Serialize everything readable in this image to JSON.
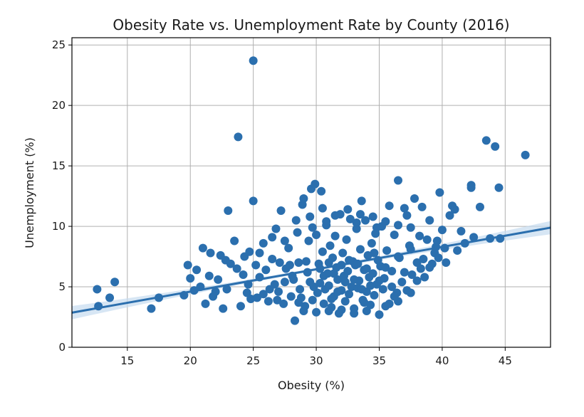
{
  "chart_data": {
    "type": "scatter",
    "title": "Obesity Rate vs. Unemployment Rate by County (2016)",
    "xlabel": "Obesity (%)",
    "ylabel": "Unemployment (%)",
    "xlim": [
      10.6,
      48.6
    ],
    "ylim": [
      0,
      25.6
    ],
    "x_ticks": [
      15,
      20,
      25,
      30,
      35,
      40,
      45
    ],
    "y_ticks": [
      0,
      5,
      10,
      15,
      20,
      25
    ],
    "grid": true,
    "legend": "none",
    "colors": {
      "points": "#2b6fae",
      "fit_line": "#2b6fae",
      "ci_band": "#c6dbef"
    },
    "regression": {
      "slope": 0.185,
      "intercept": 0.9,
      "ci_halfwidth_edge": 0.55
    },
    "points": [
      [
        12.6,
        4.8
      ],
      [
        12.7,
        3.4
      ],
      [
        13.6,
        4.1
      ],
      [
        14.0,
        5.4
      ],
      [
        16.9,
        3.2
      ],
      [
        17.5,
        4.1
      ],
      [
        19.5,
        4.3
      ],
      [
        19.8,
        6.8
      ],
      [
        20.3,
        4.7
      ],
      [
        20.5,
        6.4
      ],
      [
        20.8,
        5.0
      ],
      [
        21.0,
        8.2
      ],
      [
        21.2,
        3.6
      ],
      [
        21.5,
        5.9
      ],
      [
        21.6,
        7.8
      ],
      [
        22.0,
        4.6
      ],
      [
        22.4,
        7.6
      ],
      [
        22.6,
        3.2
      ],
      [
        22.8,
        7.2
      ],
      [
        23.0,
        11.3
      ],
      [
        23.2,
        6.9
      ],
      [
        23.5,
        8.8
      ],
      [
        23.8,
        17.4
      ],
      [
        24.0,
        3.4
      ],
      [
        24.2,
        6.0
      ],
      [
        24.3,
        7.5
      ],
      [
        24.6,
        5.2
      ],
      [
        24.8,
        4.0
      ],
      [
        25.0,
        23.7
      ],
      [
        25.0,
        12.1
      ],
      [
        25.2,
        6.8
      ],
      [
        25.5,
        7.8
      ],
      [
        25.8,
        4.4
      ],
      [
        26.2,
        3.8
      ],
      [
        26.5,
        7.3
      ],
      [
        26.8,
        9.8
      ],
      [
        27.0,
        4.6
      ],
      [
        27.2,
        11.3
      ],
      [
        27.4,
        3.6
      ],
      [
        27.6,
        6.5
      ],
      [
        27.8,
        8.2
      ],
      [
        28.0,
        4.2
      ],
      [
        28.1,
        5.9
      ],
      [
        28.3,
        2.2
      ],
      [
        28.4,
        10.5
      ],
      [
        28.6,
        7.0
      ],
      [
        28.7,
        4.8
      ],
      [
        28.9,
        11.8
      ],
      [
        29.0,
        12.3
      ],
      [
        29.1,
        3.4
      ],
      [
        29.3,
        6.2
      ],
      [
        29.4,
        8.8
      ],
      [
        29.5,
        5.4
      ],
      [
        29.6,
        13.1
      ],
      [
        29.7,
        3.9
      ],
      [
        29.9,
        13.5
      ],
      [
        30.0,
        9.3
      ],
      [
        30.1,
        4.5
      ],
      [
        30.2,
        6.9
      ],
      [
        30.3,
        5.3
      ],
      [
        30.4,
        12.9
      ],
      [
        30.5,
        7.9
      ],
      [
        30.6,
        3.6
      ],
      [
        30.7,
        4.8
      ],
      [
        30.8,
        10.1
      ],
      [
        30.9,
        6.1
      ],
      [
        31.0,
        5.1
      ],
      [
        31.1,
        8.4
      ],
      [
        31.2,
        3.3
      ],
      [
        31.3,
        7.4
      ],
      [
        31.4,
        4.2
      ],
      [
        31.5,
        9.2
      ],
      [
        31.6,
        6.6
      ],
      [
        31.7,
        5.6
      ],
      [
        31.8,
        2.8
      ],
      [
        31.9,
        11.0
      ],
      [
        32.0,
        4.7
      ],
      [
        32.1,
        7.8
      ],
      [
        32.2,
        5.9
      ],
      [
        32.3,
        3.8
      ],
      [
        32.4,
        8.9
      ],
      [
        32.5,
        6.3
      ],
      [
        32.6,
        4.4
      ],
      [
        32.7,
        10.6
      ],
      [
        32.8,
        5.0
      ],
      [
        32.9,
        7.1
      ],
      [
        33.0,
        3.2
      ],
      [
        33.1,
        6.8
      ],
      [
        33.2,
        9.8
      ],
      [
        33.3,
        4.9
      ],
      [
        33.4,
        5.5
      ],
      [
        33.5,
        8.1
      ],
      [
        33.6,
        12.1
      ],
      [
        33.7,
        3.9
      ],
      [
        33.8,
        6.4
      ],
      [
        33.9,
        10.5
      ],
      [
        34.0,
        4.6
      ],
      [
        34.1,
        7.6
      ],
      [
        34.2,
        5.8
      ],
      [
        34.3,
        3.5
      ],
      [
        34.4,
        8.6
      ],
      [
        34.5,
        6.1
      ],
      [
        34.6,
        4.3
      ],
      [
        34.7,
        9.4
      ],
      [
        34.8,
        5.2
      ],
      [
        34.9,
        7.2
      ],
      [
        35.0,
        2.7
      ],
      [
        35.1,
        6.7
      ],
      [
        35.2,
        10.0
      ],
      [
        35.3,
        4.8
      ],
      [
        35.4,
        5.7
      ],
      [
        35.6,
        8.0
      ],
      [
        35.8,
        3.6
      ],
      [
        36.0,
        6.3
      ],
      [
        36.2,
        9.3
      ],
      [
        36.4,
        4.5
      ],
      [
        36.5,
        13.8
      ],
      [
        36.6,
        7.4
      ],
      [
        36.8,
        5.4
      ],
      [
        37.0,
        11.5
      ],
      [
        37.2,
        4.7
      ],
      [
        37.4,
        8.4
      ],
      [
        37.6,
        6.0
      ],
      [
        37.8,
        12.3
      ],
      [
        38.0,
        7.0
      ],
      [
        38.2,
        9.2
      ],
      [
        38.4,
        11.6
      ],
      [
        38.6,
        5.8
      ],
      [
        38.8,
        8.9
      ],
      [
        39.0,
        10.5
      ],
      [
        39.2,
        6.9
      ],
      [
        39.4,
        7.8
      ],
      [
        39.6,
        8.8
      ],
      [
        39.8,
        12.8
      ],
      [
        40.0,
        9.7
      ],
      [
        40.3,
        7.0
      ],
      [
        40.6,
        10.9
      ],
      [
        40.8,
        11.7
      ],
      [
        41.0,
        11.4
      ],
      [
        41.2,
        8.0
      ],
      [
        41.5,
        9.6
      ],
      [
        42.3,
        13.4
      ],
      [
        42.3,
        13.2
      ],
      [
        42.5,
        9.1
      ],
      [
        43.0,
        11.6
      ],
      [
        43.5,
        17.1
      ],
      [
        43.8,
        9.0
      ],
      [
        44.2,
        16.6
      ],
      [
        44.5,
        13.2
      ],
      [
        44.6,
        9.0
      ],
      [
        46.6,
        15.9
      ],
      [
        24.5,
        4.5
      ],
      [
        25.5,
        5.8
      ],
      [
        26.0,
        6.4
      ],
      [
        26.3,
        4.8
      ],
      [
        26.7,
        5.2
      ],
      [
        27.1,
        7.0
      ],
      [
        27.5,
        5.4
      ],
      [
        27.9,
        6.8
      ],
      [
        28.2,
        5.6
      ],
      [
        28.8,
        4.1
      ],
      [
        29.2,
        7.1
      ],
      [
        29.8,
        5.0
      ],
      [
        30.3,
        6.5
      ],
      [
        30.6,
        5.9
      ],
      [
        31.0,
        7.0
      ],
      [
        31.4,
        6.1
      ],
      [
        31.7,
        4.6
      ],
      [
        32.0,
        6.8
      ],
      [
        32.3,
        5.4
      ],
      [
        32.6,
        7.2
      ],
      [
        33.0,
        5.6
      ],
      [
        33.3,
        6.9
      ],
      [
        33.6,
        4.8
      ],
      [
        34.0,
        6.5
      ],
      [
        34.3,
        5.1
      ],
      [
        34.6,
        7.8
      ],
      [
        35.0,
        5.5
      ],
      [
        35.5,
        6.6
      ],
      [
        36.0,
        5.0
      ],
      [
        36.5,
        7.5
      ],
      [
        37.0,
        6.2
      ],
      [
        37.5,
        8.1
      ],
      [
        38.0,
        5.5
      ],
      [
        38.5,
        7.3
      ],
      [
        39.0,
        6.6
      ],
      [
        39.5,
        8.3
      ],
      [
        28.5,
        9.5
      ],
      [
        29.5,
        10.8
      ],
      [
        30.5,
        11.5
      ],
      [
        31.5,
        10.9
      ],
      [
        32.5,
        11.4
      ],
      [
        33.5,
        11.0
      ],
      [
        34.5,
        10.8
      ],
      [
        35.5,
        10.4
      ],
      [
        36.5,
        10.1
      ],
      [
        37.5,
        9.9
      ],
      [
        29.0,
        3.0
      ],
      [
        30.0,
        2.9
      ],
      [
        31.0,
        3.0
      ],
      [
        32.0,
        3.1
      ],
      [
        33.0,
        2.8
      ],
      [
        34.0,
        3.0
      ],
      [
        35.5,
        3.4
      ],
      [
        36.5,
        3.8
      ],
      [
        37.5,
        4.5
      ],
      [
        27.5,
        8.8
      ],
      [
        26.5,
        9.1
      ],
      [
        25.8,
        8.6
      ],
      [
        24.7,
        7.9
      ],
      [
        23.7,
        6.5
      ],
      [
        22.2,
        5.6
      ],
      [
        21.8,
        4.2
      ],
      [
        20.0,
        5.7
      ],
      [
        22.9,
        4.8
      ],
      [
        25.3,
        4.1
      ],
      [
        26.9,
        3.9
      ],
      [
        28.6,
        3.7
      ],
      [
        31.2,
        4.0
      ],
      [
        33.8,
        3.7
      ],
      [
        36.2,
        4.2
      ],
      [
        38.3,
        6.5
      ],
      [
        39.7,
        7.4
      ],
      [
        40.2,
        8.2
      ],
      [
        41.8,
        8.6
      ],
      [
        37.2,
        10.9
      ],
      [
        35.8,
        11.7
      ],
      [
        34.8,
        9.9
      ],
      [
        33.2,
        10.3
      ],
      [
        30.8,
        10.4
      ],
      [
        29.7,
        9.9
      ]
    ]
  }
}
